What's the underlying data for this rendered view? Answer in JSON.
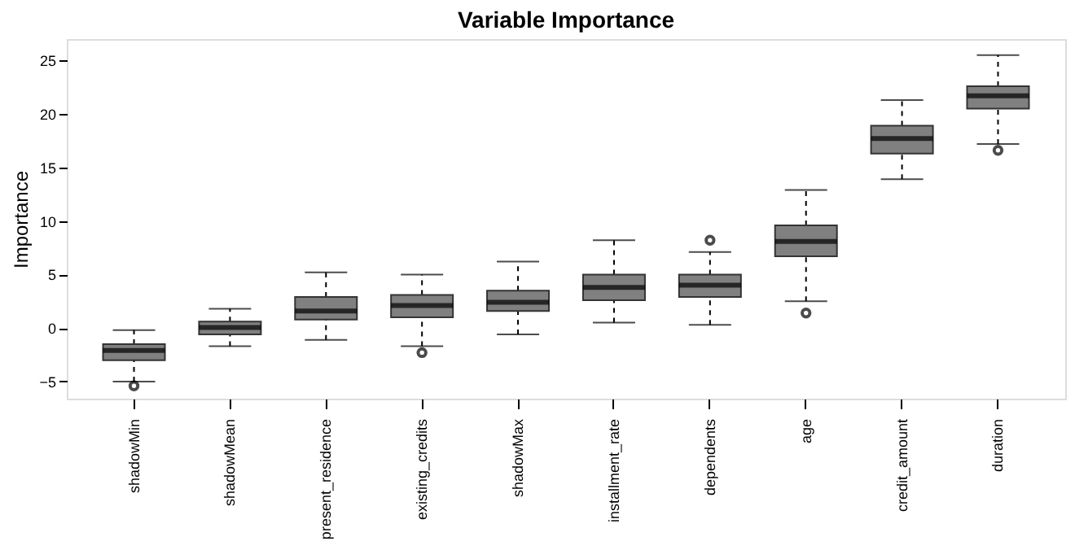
{
  "chart_data": {
    "type": "box",
    "title": "Variable Importance",
    "ylabel": "Importance",
    "categories": [
      "shadowMin",
      "shadowMean",
      "present_residence",
      "existing_credits",
      "shadowMax",
      "installment_rate",
      "dependents",
      "age",
      "credit_amount",
      "duration"
    ],
    "ylim": [
      -6.6,
      27
    ],
    "yticks": [
      -5,
      0,
      5,
      10,
      15,
      20,
      25
    ],
    "grid": false,
    "series": [
      {
        "color": "#808080",
        "boxes": [
          {
            "low": -5.0,
            "q1": -3.0,
            "median": -2.1,
            "q3": -1.5,
            "high": -0.2,
            "outliers": [
              -5.4
            ]
          },
          {
            "low": -1.7,
            "q1": -0.6,
            "median": 0.05,
            "q3": 0.6,
            "high": 1.8
          },
          {
            "low": -1.1,
            "q1": 0.8,
            "median": 1.6,
            "q3": 2.9,
            "high": 5.2
          },
          {
            "low": -1.7,
            "q1": 1.0,
            "median": 2.1,
            "q3": 3.1,
            "high": 5.0,
            "outliers": [
              -2.3
            ]
          },
          {
            "low": -0.6,
            "q1": 1.6,
            "median": 2.4,
            "q3": 3.5,
            "high": 6.2
          },
          {
            "low": 0.5,
            "q1": 2.6,
            "median": 3.8,
            "q3": 5.0,
            "high": 8.2
          },
          {
            "low": 0.3,
            "q1": 2.9,
            "median": 4.0,
            "q3": 5.0,
            "high": 7.1,
            "outliers": [
              8.2
            ]
          },
          {
            "low": 2.5,
            "q1": 6.7,
            "median": 8.1,
            "q3": 9.6,
            "high": 12.9,
            "outliers": [
              1.4
            ]
          },
          {
            "low": 13.9,
            "q1": 16.3,
            "median": 17.7,
            "q3": 18.9,
            "high": 21.3
          },
          {
            "low": 17.2,
            "q1": 20.5,
            "median": 21.7,
            "q3": 22.6,
            "high": 25.5,
            "outliers": [
              16.6
            ]
          }
        ]
      }
    ]
  }
}
